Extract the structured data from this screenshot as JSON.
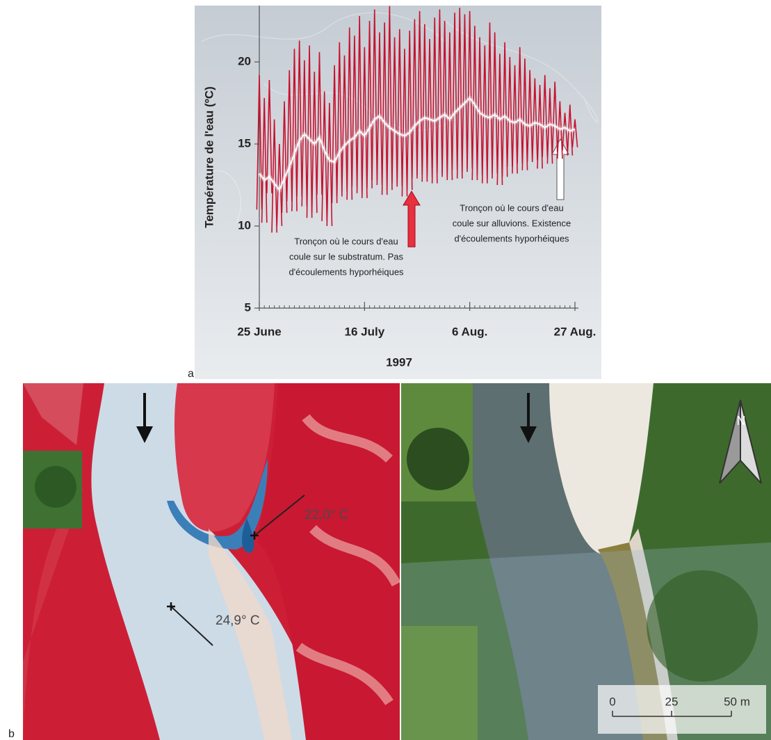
{
  "chart_data": {
    "type": "line",
    "ylabel": "Température de l'eau (ºC)",
    "xlabel": "1997",
    "panel_label": "a",
    "x": [
      "1997-06-25",
      "1997-06-26",
      "1997-06-27",
      "1997-06-28",
      "1997-06-29",
      "1997-06-30",
      "1997-07-01",
      "1997-07-02",
      "1997-07-03",
      "1997-07-04",
      "1997-07-05",
      "1997-07-06",
      "1997-07-07",
      "1997-07-08",
      "1997-07-09",
      "1997-07-10",
      "1997-07-11",
      "1997-07-12",
      "1997-07-13",
      "1997-07-14",
      "1997-07-15",
      "1997-07-16",
      "1997-07-17",
      "1997-07-18",
      "1997-07-19",
      "1997-07-20",
      "1997-07-21",
      "1997-07-22",
      "1997-07-23",
      "1997-07-24",
      "1997-07-25",
      "1997-07-26",
      "1997-07-27",
      "1997-07-28",
      "1997-07-29",
      "1997-07-30",
      "1997-07-31",
      "1997-08-01",
      "1997-08-02",
      "1997-08-03",
      "1997-08-04",
      "1997-08-05",
      "1997-08-06",
      "1997-08-07",
      "1997-08-08",
      "1997-08-09",
      "1997-08-10",
      "1997-08-11",
      "1997-08-12",
      "1997-08-13",
      "1997-08-14",
      "1997-08-15",
      "1997-08-16",
      "1997-08-17",
      "1997-08-18",
      "1997-08-19",
      "1997-08-20",
      "1997-08-21",
      "1997-08-22",
      "1997-08-23",
      "1997-08-24",
      "1997-08-25",
      "1997-08-26",
      "1997-08-27"
    ],
    "series": [
      {
        "color": "#c8102e",
        "values": [
          19.2,
          17.8,
          18.9,
          16.5,
          15.0,
          17.6,
          19.5,
          20.8,
          21.3,
          20.1,
          21.0,
          19.4,
          20.6,
          18.2,
          17.5,
          19.8,
          21.2,
          20.4,
          22.1,
          21.6,
          22.8,
          20.9,
          22.5,
          23.2,
          21.8,
          22.4,
          23.4,
          21.5,
          22.0,
          20.8,
          21.9,
          22.6,
          23.1,
          22.3,
          21.4,
          22.7,
          23.2,
          22.5,
          21.8,
          23.0,
          23.3,
          22.9,
          23.1,
          22.2,
          21.5,
          21.0,
          22.4,
          21.8,
          20.5,
          21.2,
          20.3,
          19.8,
          20.9,
          20.2,
          19.5,
          19.0,
          18.6,
          19.2,
          18.4,
          18.8,
          17.6,
          16.9,
          17.4,
          16.5
        ]
      },
      {
        "color": "#c8102e",
        "values": [
          11.0,
          10.2,
          12.0,
          9.6,
          10.0,
          10.8,
          11.5,
          10.9,
          11.8,
          11.2,
          10.5,
          10.8,
          11.9,
          10.3,
          10.0,
          11.4,
          11.8,
          12.1,
          11.6,
          12.4,
          12.0,
          11.7,
          12.3,
          12.8,
          12.5,
          11.9,
          12.2,
          12.6,
          12.4,
          11.8,
          12.2,
          12.9,
          13.1,
          12.7,
          13.0,
          12.6,
          13.2,
          13.0,
          12.8,
          13.4,
          12.9,
          13.3,
          13.5,
          12.8,
          13.1,
          12.6,
          12.9,
          13.2,
          12.5,
          13.0,
          13.6,
          13.2,
          13.8,
          13.4,
          13.9,
          14.0,
          13.5,
          14.2,
          13.8,
          14.5,
          14.1,
          14.6,
          14.3,
          14.8
        ]
      },
      {
        "color": "#ffffff",
        "values": [
          13.2,
          12.8,
          13.0,
          12.6,
          12.2,
          12.9,
          13.6,
          14.4,
          15.2,
          15.6,
          15.3,
          15.0,
          15.4,
          14.6,
          14.0,
          13.9,
          14.5,
          14.9,
          15.2,
          15.4,
          15.8,
          15.5,
          16.0,
          16.5,
          16.7,
          16.3,
          16.0,
          15.8,
          15.6,
          15.5,
          15.7,
          16.1,
          16.4,
          16.6,
          16.5,
          16.4,
          16.6,
          16.8,
          16.5,
          16.9,
          17.2,
          17.5,
          17.8,
          17.4,
          16.9,
          16.7,
          16.6,
          16.8,
          16.5,
          16.7,
          16.4,
          16.3,
          16.5,
          16.2,
          16.1,
          16.3,
          16.2,
          16.0,
          16.2,
          16.1,
          15.9,
          16.0,
          15.8,
          15.9
        ]
      }
    ],
    "xlim": [
      "1997-06-25",
      "1997-08-27"
    ],
    "xticks": [
      {
        "value": "1997-06-25",
        "label": "25 June"
      },
      {
        "value": "1997-07-16",
        "label": "16 July"
      },
      {
        "value": "1997-08-06",
        "label": "6 Aug."
      },
      {
        "value": "1997-08-27",
        "label": "27 Aug."
      }
    ],
    "ylim": [
      5,
      23.4
    ],
    "yticks": [
      5,
      10,
      15,
      20
    ],
    "annotations": [
      {
        "lines": [
          "Tronçon où le cours d'eau",
          "coule sur le substratum. Pas",
          "d'écoulements hyporhéiques"
        ],
        "color": "#e8303f"
      },
      {
        "lines": [
          "Tronçon où le cours d'eau",
          "coule sur alluvions. Existence",
          "d'écoulements hyporhéiques"
        ],
        "color": "#ffffff"
      }
    ]
  },
  "panel_b": {
    "label": "b",
    "temperatures": [
      "22,0° C",
      "24,9° C"
    ],
    "north": "N",
    "scale": [
      "0",
      "25",
      "50 m"
    ]
  }
}
